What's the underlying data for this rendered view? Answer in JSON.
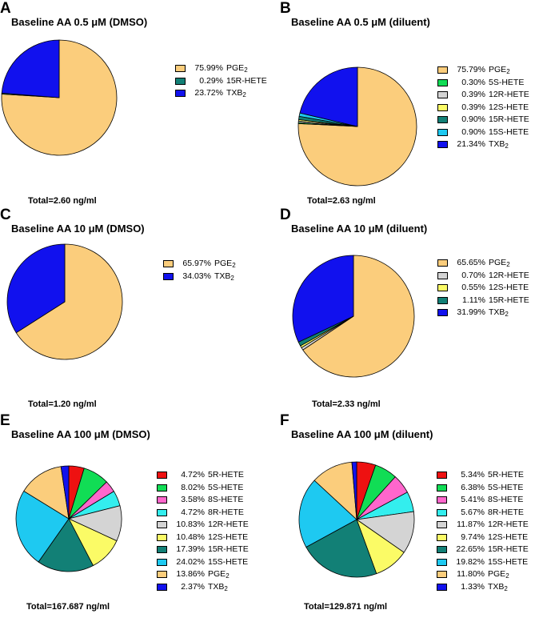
{
  "figure": {
    "panels": [
      {
        "letter": "A",
        "title": "Baseline AA 0.5 μM (DMSO)",
        "total": "Total=2.60 ng/ml"
      },
      {
        "letter": "B",
        "title": "Baseline AA 0.5 μM (diluent)",
        "total": "Total=2.63 ng/ml"
      },
      {
        "letter": "C",
        "title": "Baseline AA 10  μM  (DMSO)",
        "total": "Total=1.20 ng/ml"
      },
      {
        "letter": "D",
        "title": "Baseline AA 10  μM (diluent)",
        "total": "Total=2.33 ng/ml"
      },
      {
        "letter": "E",
        "title": "Baseline AA 100 μM (DMSO)",
        "total": "Total=167.687 ng/ml"
      },
      {
        "letter": "F",
        "title": "Baseline AA 100 μM (diluent)",
        "total": "Total=129.871 ng/ml"
      }
    ]
  },
  "colors": {
    "PGE2": "#fbcd7c",
    "5R-HETE": "#ee1111",
    "5S-HETE": "#11dd55",
    "8S-HETE": "#ff66cc",
    "8R-HETE": "#33eeee",
    "12R-HETE": "#d4d4d4",
    "12S-HETE": "#fbfb66",
    "15R-HETE": "#128076",
    "15S-HETE": "#1ec9f1",
    "TXB2": "#1111ee"
  },
  "chart_data": [
    {
      "type": "pie",
      "panel": "A",
      "title": "Baseline AA 0.5 μM (DMSO)",
      "total_ng_ml": 2.6,
      "slices": [
        {
          "pct": "75.99%",
          "label": "PGE2",
          "value": 75.99,
          "key": "PGE2"
        },
        {
          "pct": "0.29%",
          "label": "15R-HETE",
          "value": 0.29,
          "key": "15R-HETE"
        },
        {
          "pct": "23.72%",
          "label": "TXB2",
          "value": 23.72,
          "key": "TXB2"
        }
      ]
    },
    {
      "type": "pie",
      "panel": "B",
      "title": "Baseline AA 0.5 μM (diluent)",
      "total_ng_ml": 2.63,
      "slices": [
        {
          "pct": "75.79%",
          "label": "PGE2",
          "value": 75.79,
          "key": "PGE2"
        },
        {
          "pct": "0.30%",
          "label": "5S-HETE",
          "value": 0.3,
          "key": "5S-HETE"
        },
        {
          "pct": "0.39%",
          "label": "12R-HETE",
          "value": 0.39,
          "key": "12R-HETE"
        },
        {
          "pct": "0.39%",
          "label": "12S-HETE",
          "value": 0.39,
          "key": "12S-HETE"
        },
        {
          "pct": "0.90%",
          "label": "15R-HETE",
          "value": 0.9,
          "key": "15R-HETE"
        },
        {
          "pct": "0.90%",
          "label": "15S-HETE",
          "value": 0.9,
          "key": "15S-HETE"
        },
        {
          "pct": "21.34%",
          "label": "TXB2",
          "value": 21.34,
          "key": "TXB2"
        }
      ]
    },
    {
      "type": "pie",
      "panel": "C",
      "title": "Baseline AA 10  μM  (DMSO)",
      "total_ng_ml": 1.2,
      "slices": [
        {
          "pct": "65.97%",
          "label": "PGE2",
          "value": 65.97,
          "key": "PGE2"
        },
        {
          "pct": "34.03%",
          "label": "TXB2",
          "value": 34.03,
          "key": "TXB2"
        }
      ]
    },
    {
      "type": "pie",
      "panel": "D",
      "title": "Baseline AA 10  μM (diluent)",
      "total_ng_ml": 2.33,
      "slices": [
        {
          "pct": "65.65%",
          "label": "PGE2",
          "value": 65.65,
          "key": "PGE2"
        },
        {
          "pct": "0.70%",
          "label": "12R-HETE",
          "value": 0.7,
          "key": "12R-HETE"
        },
        {
          "pct": "0.55%",
          "label": "12S-HETE",
          "value": 0.55,
          "key": "12S-HETE"
        },
        {
          "pct": "1.11%",
          "label": "15R-HETE",
          "value": 1.11,
          "key": "15R-HETE"
        },
        {
          "pct": "31.99%",
          "label": "TXB2",
          "value": 31.99,
          "key": "TXB2"
        }
      ]
    },
    {
      "type": "pie",
      "panel": "E",
      "title": "Baseline AA 100 μM (DMSO)",
      "total_ng_ml": 167.687,
      "slices": [
        {
          "pct": "4.72%",
          "label": "5R-HETE",
          "value": 4.72,
          "key": "5R-HETE"
        },
        {
          "pct": "8.02%",
          "label": "5S-HETE",
          "value": 8.02,
          "key": "5S-HETE"
        },
        {
          "pct": "3.58%",
          "label": "8S-HETE",
          "value": 3.58,
          "key": "8S-HETE"
        },
        {
          "pct": "4.72%",
          "label": "8R-HETE",
          "value": 4.72,
          "key": "8R-HETE"
        },
        {
          "pct": "10.83%",
          "label": "12R-HETE",
          "value": 10.83,
          "key": "12R-HETE"
        },
        {
          "pct": "10.48%",
          "label": "12S-HETE",
          "value": 10.48,
          "key": "12S-HETE"
        },
        {
          "pct": "17.39%",
          "label": "15R-HETE",
          "value": 17.39,
          "key": "15R-HETE"
        },
        {
          "pct": "24.02%",
          "label": "15S-HETE",
          "value": 24.02,
          "key": "15S-HETE"
        },
        {
          "pct": "13.86%",
          "label": "PGE2",
          "value": 13.86,
          "key": "PGE2"
        },
        {
          "pct": "2.37%",
          "label": "TXB2",
          "value": 2.37,
          "key": "TXB2"
        }
      ]
    },
    {
      "type": "pie",
      "panel": "F",
      "title": "Baseline AA 100 μM (diluent)",
      "total_ng_ml": 129.871,
      "slices": [
        {
          "pct": "5.34%",
          "label": "5R-HETE",
          "value": 5.34,
          "key": "5R-HETE"
        },
        {
          "pct": "6.38%",
          "label": "5S-HETE",
          "value": 6.38,
          "key": "5S-HETE"
        },
        {
          "pct": "5.41%",
          "label": "8S-HETE",
          "value": 5.41,
          "key": "8S-HETE"
        },
        {
          "pct": "5.67%",
          "label": "8R-HETE",
          "value": 5.67,
          "key": "8R-HETE"
        },
        {
          "pct": "11.87%",
          "label": "12R-HETE",
          "value": 11.87,
          "key": "12R-HETE"
        },
        {
          "pct": "9.74%",
          "label": "12S-HETE",
          "value": 9.74,
          "key": "12S-HETE"
        },
        {
          "pct": "22.65%",
          "label": "15R-HETE",
          "value": 22.65,
          "key": "15R-HETE"
        },
        {
          "pct": "19.82%",
          "label": "15S-HETE",
          "value": 19.82,
          "key": "15S-HETE"
        },
        {
          "pct": "11.80%",
          "label": "PGE2",
          "value": 11.8,
          "key": "PGE2"
        },
        {
          "pct": "1.33%",
          "label": "TXB2",
          "value": 1.33,
          "key": "TXB2"
        }
      ]
    }
  ]
}
